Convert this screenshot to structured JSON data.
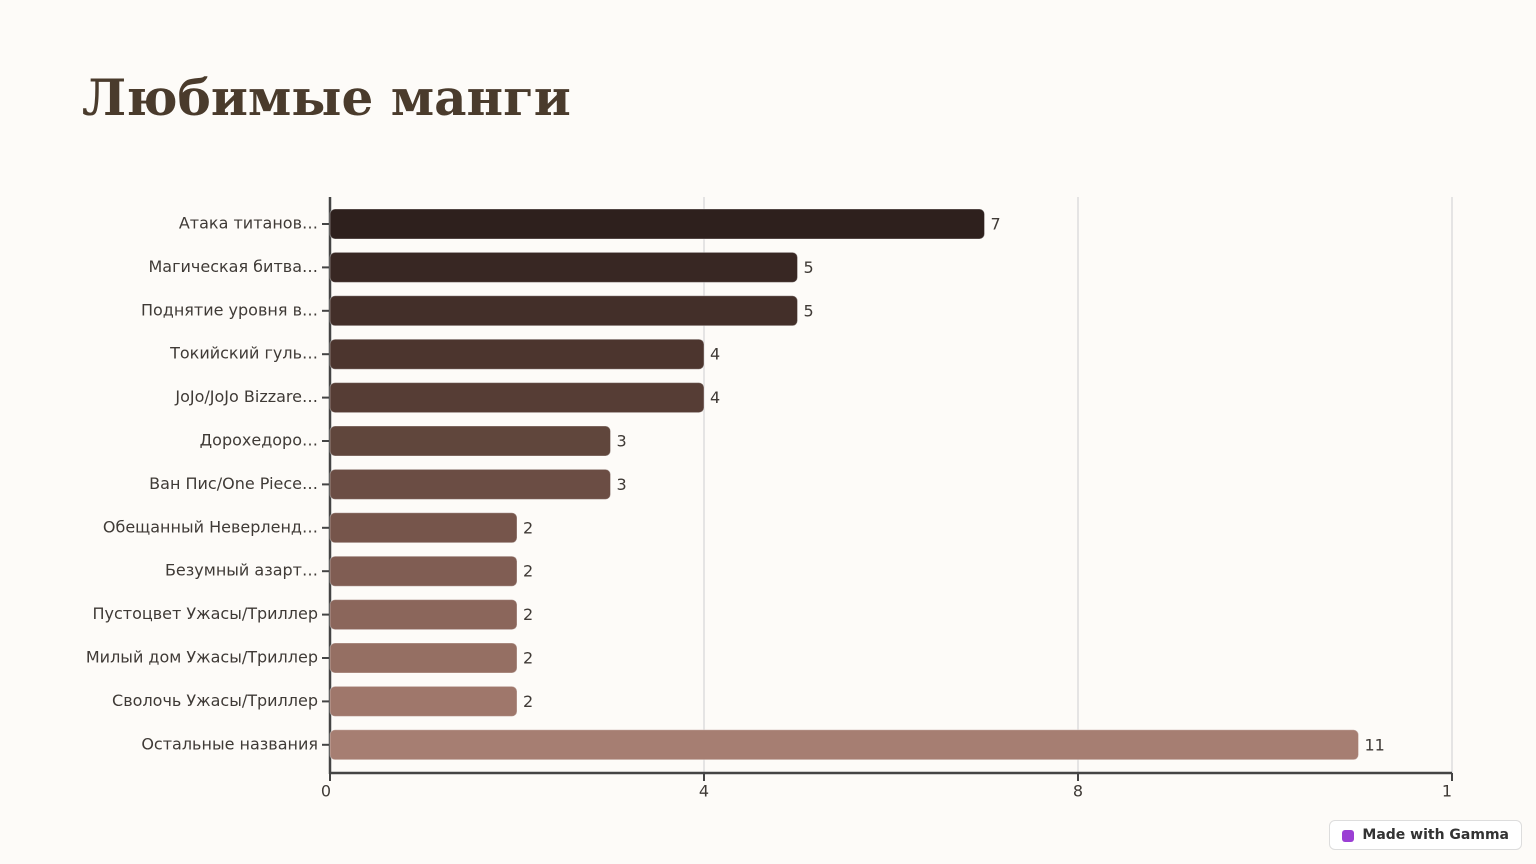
{
  "chart_data": {
    "type": "hbar",
    "title": "Любимые манги",
    "categories": [
      "Атака титанов…",
      "Магическая битва…",
      "Поднятие уровня в…",
      "Токийский гуль…",
      "JoJo/JoJo Bizzare…",
      "Дорохедоро…",
      "Ван Пис/One Piece…",
      "Обещанный Неверленд…",
      "Безумный азарт…",
      "Пустоцвет Ужасы/Триллер",
      "Милый дом Ужасы/Триллер",
      "Сволочь Ужасы/Триллер",
      "Остальные названия"
    ],
    "values": [
      7,
      5,
      5,
      4,
      4,
      3,
      3,
      2,
      2,
      2,
      2,
      2,
      11
    ],
    "colors": [
      "#2e201d",
      "#382723",
      "#432f29",
      "#4c352e",
      "#563d35",
      "#60463c",
      "#6b4d44",
      "#76554b",
      "#805d53",
      "#8b665b",
      "#956f63",
      "#9f776b",
      "#a67e72"
    ],
    "xlim": [
      0,
      12
    ],
    "xticks": [
      0,
      4,
      8,
      {
        "value": 12,
        "label": "1"
      }
    ],
    "grid": true
  },
  "badge": "Made with Gamma"
}
